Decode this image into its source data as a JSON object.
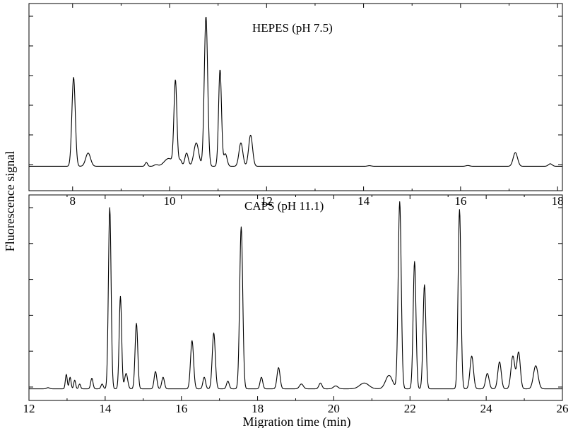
{
  "figure": {
    "ylabel": "Fluorescence signal",
    "xlabel": "Migration time (min)"
  },
  "chart_data": [
    {
      "type": "line",
      "title": "HEPES (pH 7.5)",
      "xlabel": "",
      "ylabel": "Fluorescence signal",
      "xlim": [
        7.1,
        18.1
      ],
      "ylim": [
        0,
        100
      ],
      "xticks": [
        8,
        10,
        12,
        14,
        16,
        18
      ],
      "y_tick_count": 6,
      "y_tick_labels_shown": false,
      "baseline": 2.5,
      "peaks": [
        {
          "x": 8.02,
          "height": 57,
          "width": 0.035
        },
        {
          "x": 8.32,
          "height": 8.5,
          "width": 0.05
        },
        {
          "x": 9.52,
          "height": 2.5,
          "width": 0.025
        },
        {
          "x": 9.72,
          "height": 1.0,
          "width": 0.04
        },
        {
          "x": 9.98,
          "height": 5.0,
          "width": 0.09
        },
        {
          "x": 10.12,
          "height": 54,
          "width": 0.03
        },
        {
          "x": 10.22,
          "height": 4,
          "width": 0.03
        },
        {
          "x": 10.35,
          "height": 8.5,
          "width": 0.035
        },
        {
          "x": 10.55,
          "height": 15,
          "width": 0.05
        },
        {
          "x": 10.75,
          "height": 96,
          "width": 0.035
        },
        {
          "x": 11.04,
          "height": 62,
          "width": 0.03
        },
        {
          "x": 11.15,
          "height": 8,
          "width": 0.035
        },
        {
          "x": 11.47,
          "height": 15,
          "width": 0.04
        },
        {
          "x": 11.67,
          "height": 20,
          "width": 0.04
        },
        {
          "x": 14.12,
          "height": 0.4,
          "width": 0.04
        },
        {
          "x": 16.15,
          "height": 0.5,
          "width": 0.04
        },
        {
          "x": 17.13,
          "height": 8.8,
          "width": 0.045
        },
        {
          "x": 17.85,
          "height": 1.6,
          "width": 0.04
        }
      ]
    },
    {
      "type": "line",
      "title": "CAPS (pH 11.1)",
      "xlabel": "Migration time (min)",
      "ylabel": "Fluorescence signal",
      "xlim": [
        12,
        26
      ],
      "ylim": [
        0,
        100
      ],
      "xticks": [
        12,
        14,
        16,
        18,
        20,
        22,
        24,
        26
      ],
      "y_tick_count": 6,
      "y_tick_labels_shown": false,
      "baseline": 2.0,
      "peaks": [
        {
          "x": 12.5,
          "height": 0.6,
          "width": 0.04
        },
        {
          "x": 12.98,
          "height": 7.5,
          "width": 0.025
        },
        {
          "x": 13.08,
          "height": 6,
          "width": 0.025
        },
        {
          "x": 13.2,
          "height": 4.5,
          "width": 0.025
        },
        {
          "x": 13.33,
          "height": 2.5,
          "width": 0.025
        },
        {
          "x": 13.65,
          "height": 5.5,
          "width": 0.03
        },
        {
          "x": 13.92,
          "height": 2.5,
          "width": 0.03
        },
        {
          "x": 14.12,
          "height": 94,
          "width": 0.035
        },
        {
          "x": 14.4,
          "height": 48,
          "width": 0.032
        },
        {
          "x": 14.55,
          "height": 8,
          "width": 0.04
        },
        {
          "x": 14.82,
          "height": 34,
          "width": 0.035
        },
        {
          "x": 15.32,
          "height": 9,
          "width": 0.035
        },
        {
          "x": 15.52,
          "height": 6,
          "width": 0.035
        },
        {
          "x": 16.28,
          "height": 25,
          "width": 0.04
        },
        {
          "x": 16.6,
          "height": 6,
          "width": 0.035
        },
        {
          "x": 16.85,
          "height": 29,
          "width": 0.04
        },
        {
          "x": 17.22,
          "height": 4,
          "width": 0.035
        },
        {
          "x": 17.57,
          "height": 84,
          "width": 0.04
        },
        {
          "x": 18.1,
          "height": 6,
          "width": 0.035
        },
        {
          "x": 18.55,
          "height": 11,
          "width": 0.04
        },
        {
          "x": 19.15,
          "height": 2.5,
          "width": 0.05
        },
        {
          "x": 19.65,
          "height": 3,
          "width": 0.04
        },
        {
          "x": 20.05,
          "height": 1.5,
          "width": 0.06
        },
        {
          "x": 20.8,
          "height": 3,
          "width": 0.12
        },
        {
          "x": 21.45,
          "height": 7,
          "width": 0.09
        },
        {
          "x": 21.73,
          "height": 97,
          "width": 0.04
        },
        {
          "x": 22.12,
          "height": 66,
          "width": 0.037
        },
        {
          "x": 22.38,
          "height": 54,
          "width": 0.037
        },
        {
          "x": 23.3,
          "height": 93,
          "width": 0.037
        },
        {
          "x": 23.62,
          "height": 17,
          "width": 0.045
        },
        {
          "x": 24.03,
          "height": 8,
          "width": 0.045
        },
        {
          "x": 24.35,
          "height": 14,
          "width": 0.045
        },
        {
          "x": 24.7,
          "height": 17,
          "width": 0.05
        },
        {
          "x": 24.85,
          "height": 19,
          "width": 0.045
        },
        {
          "x": 25.3,
          "height": 12,
          "width": 0.06
        }
      ]
    }
  ]
}
